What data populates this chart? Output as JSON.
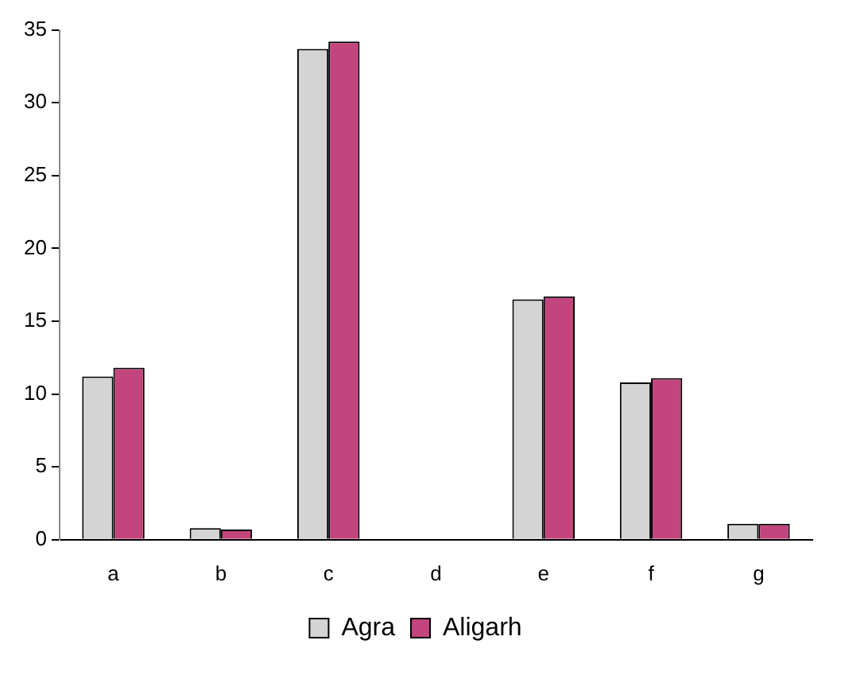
{
  "chart_data": {
    "type": "bar",
    "categories": [
      "a",
      "b",
      "c",
      "d",
      "e",
      "f",
      "g"
    ],
    "series": [
      {
        "name": "Agra",
        "color": "#d4d4d4",
        "values": [
          11.2,
          0.8,
          33.7,
          0,
          16.5,
          10.8,
          1.1
        ]
      },
      {
        "name": "Aligarh",
        "color": "#c2457e",
        "values": [
          11.8,
          0.7,
          34.2,
          0,
          16.7,
          11.1,
          1.1
        ]
      }
    ],
    "ylim": [
      0,
      35
    ],
    "yticks": [
      0,
      5,
      10,
      15,
      20,
      25,
      30,
      35
    ],
    "grid": false,
    "legend": "bottom"
  }
}
